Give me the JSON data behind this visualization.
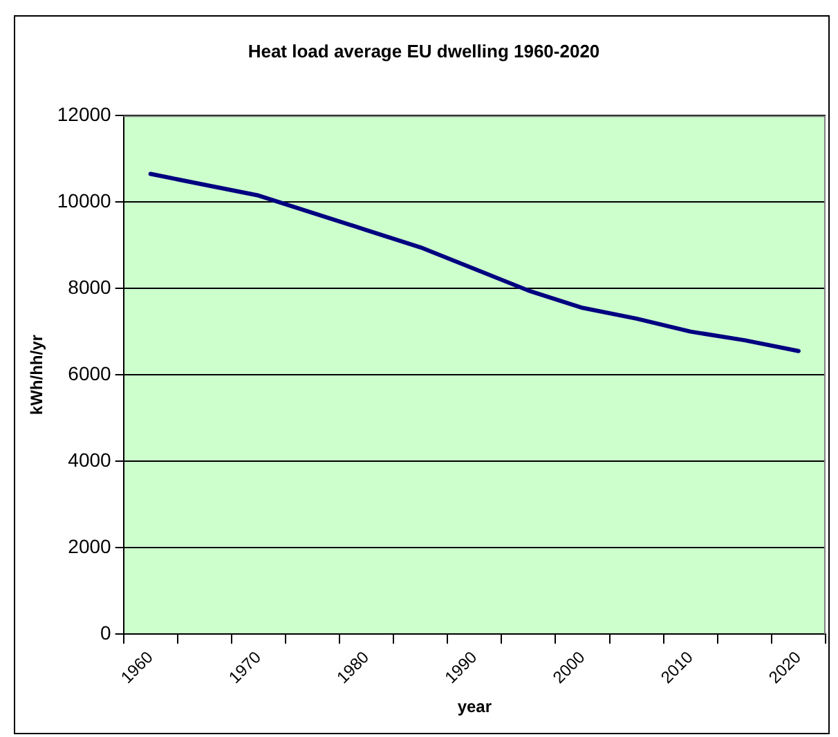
{
  "chart_data": {
    "type": "line",
    "title": "Heat load average EU dwelling 1960-2020",
    "xlabel": "year",
    "ylabel": "kWh/hh/yr",
    "categories": [
      "1960",
      null,
      "1970",
      null,
      "1980",
      null,
      "1990",
      null,
      "2000",
      null,
      "2010",
      null,
      "2020"
    ],
    "series": [
      {
        "color": "#000080",
        "values": [
          10650,
          10400,
          10150,
          9750,
          9350,
          8950,
          8450,
          7950,
          7550,
          7300,
          7000,
          6800,
          6550
        ]
      }
    ],
    "ylim": [
      0,
      12000
    ],
    "yticks": [
      0,
      2000,
      4000,
      6000,
      8000,
      10000,
      12000
    ],
    "grid": "y",
    "legend": false,
    "marker": "none",
    "line_style": "solid"
  }
}
